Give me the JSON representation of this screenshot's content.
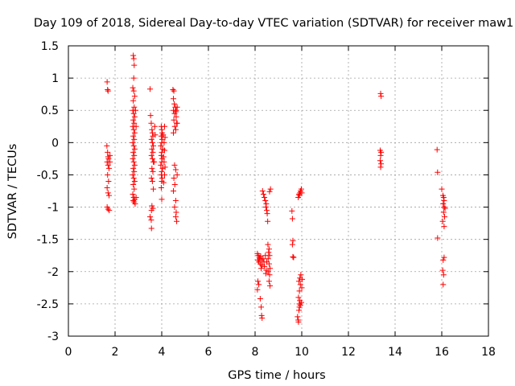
{
  "chart_data": {
    "type": "scatter",
    "title": "Day 109 of 2018, Sidereal Day-to-day VTEC variation (SDTVAR) for receiver maw1",
    "xlabel": "GPS time / hours",
    "ylabel": "SDTVAR / TECUs",
    "xlim": [
      0,
      18
    ],
    "ylim": [
      -3,
      1.5
    ],
    "xticks": [
      0,
      2,
      4,
      6,
      8,
      10,
      12,
      14,
      16,
      18
    ],
    "yticks": [
      -3,
      -2.5,
      -2,
      -1.5,
      -1,
      -0.5,
      0,
      0.5,
      1,
      1.5
    ],
    "xtick_labels": [
      "0",
      "2",
      "4",
      "6",
      "8",
      "10",
      "12",
      "14",
      "16",
      "18"
    ],
    "ytick_labels": [
      "-3",
      "-2.5",
      "-2",
      "-1.5",
      "-1",
      "-0.5",
      "0",
      "0.5",
      "1",
      "1.5"
    ],
    "grid": true,
    "marker": "+",
    "marker_color": "#ff0000",
    "series": [
      {
        "name": "SDTVAR",
        "points": [
          [
            1.66,
            0.94
          ],
          [
            1.68,
            0.82
          ],
          [
            1.7,
            0.8
          ],
          [
            1.65,
            -0.05
          ],
          [
            1.68,
            -0.15
          ],
          [
            1.7,
            -0.22
          ],
          [
            1.72,
            -0.25
          ],
          [
            1.66,
            -0.3
          ],
          [
            1.7,
            -0.35
          ],
          [
            1.74,
            -0.4
          ],
          [
            1.68,
            -0.5
          ],
          [
            1.72,
            -0.6
          ],
          [
            1.66,
            -0.7
          ],
          [
            1.7,
            -0.78
          ],
          [
            1.74,
            -0.82
          ],
          [
            1.66,
            -1.0
          ],
          [
            1.7,
            -1.03
          ],
          [
            1.75,
            -1.05
          ],
          [
            1.78,
            -0.3
          ],
          [
            1.78,
            -0.2
          ],
          [
            2.78,
            1.35
          ],
          [
            2.8,
            1.3
          ],
          [
            2.82,
            1.2
          ],
          [
            2.8,
            1.0
          ],
          [
            2.76,
            0.85
          ],
          [
            2.8,
            0.8
          ],
          [
            2.84,
            0.72
          ],
          [
            2.78,
            0.65
          ],
          [
            2.82,
            0.55
          ],
          [
            2.76,
            0.5
          ],
          [
            2.8,
            0.45
          ],
          [
            2.84,
            0.4
          ],
          [
            2.78,
            0.35
          ],
          [
            2.82,
            0.3
          ],
          [
            2.76,
            0.25
          ],
          [
            2.8,
            0.2
          ],
          [
            2.84,
            0.15
          ],
          [
            2.78,
            0.1
          ],
          [
            2.82,
            0.05
          ],
          [
            2.76,
            0.0
          ],
          [
            2.8,
            -0.05
          ],
          [
            2.84,
            -0.1
          ],
          [
            2.78,
            -0.15
          ],
          [
            2.82,
            -0.2
          ],
          [
            2.76,
            -0.25
          ],
          [
            2.8,
            -0.3
          ],
          [
            2.84,
            -0.35
          ],
          [
            2.78,
            -0.4
          ],
          [
            2.82,
            -0.45
          ],
          [
            2.76,
            -0.5
          ],
          [
            2.8,
            -0.55
          ],
          [
            2.84,
            -0.6
          ],
          [
            2.78,
            -0.65
          ],
          [
            2.82,
            -0.72
          ],
          [
            2.76,
            -0.8
          ],
          [
            2.8,
            -0.85
          ],
          [
            2.84,
            -0.88
          ],
          [
            2.78,
            -0.9
          ],
          [
            2.82,
            -0.92
          ],
          [
            2.86,
            -0.95
          ],
          [
            2.9,
            -0.85
          ],
          [
            2.9,
            0.25
          ],
          [
            2.88,
            0.5
          ],
          [
            3.5,
            0.83
          ],
          [
            3.52,
            0.42
          ],
          [
            3.55,
            0.3
          ],
          [
            3.58,
            0.2
          ],
          [
            3.6,
            0.15
          ],
          [
            3.62,
            0.1
          ],
          [
            3.56,
            0.05
          ],
          [
            3.6,
            0.0
          ],
          [
            3.64,
            -0.05
          ],
          [
            3.58,
            -0.1
          ],
          [
            3.62,
            -0.15
          ],
          [
            3.56,
            -0.2
          ],
          [
            3.6,
            -0.25
          ],
          [
            3.64,
            -0.3
          ],
          [
            3.58,
            -0.4
          ],
          [
            3.62,
            -0.45
          ],
          [
            3.56,
            -0.55
          ],
          [
            3.6,
            -0.6
          ],
          [
            3.64,
            -0.72
          ],
          [
            3.58,
            -0.98
          ],
          [
            3.62,
            -1.02
          ],
          [
            3.56,
            -1.05
          ],
          [
            3.5,
            -1.15
          ],
          [
            3.55,
            -1.2
          ],
          [
            3.56,
            -1.33
          ],
          [
            3.7,
            0.25
          ],
          [
            3.72,
            0.12
          ],
          [
            3.68,
            -0.3
          ],
          [
            3.98,
            0.25
          ],
          [
            4.0,
            0.2
          ],
          [
            4.02,
            0.15
          ],
          [
            3.98,
            0.1
          ],
          [
            4.02,
            0.05
          ],
          [
            4.0,
            0.0
          ],
          [
            3.96,
            -0.05
          ],
          [
            4.04,
            -0.1
          ],
          [
            4.0,
            -0.15
          ],
          [
            3.98,
            -0.2
          ],
          [
            4.02,
            -0.25
          ],
          [
            4.0,
            -0.3
          ],
          [
            3.96,
            -0.35
          ],
          [
            4.04,
            -0.4
          ],
          [
            4.0,
            -0.45
          ],
          [
            3.98,
            -0.5
          ],
          [
            4.02,
            -0.55
          ],
          [
            4.0,
            -0.6
          ],
          [
            4.06,
            0.12
          ],
          [
            4.1,
            0.0
          ],
          [
            4.12,
            -0.12
          ],
          [
            4.08,
            -0.22
          ],
          [
            4.1,
            -0.3
          ],
          [
            4.14,
            -0.38
          ],
          [
            4.12,
            -0.5
          ],
          [
            4.08,
            -0.62
          ],
          [
            3.98,
            -0.7
          ],
          [
            4.0,
            -0.88
          ],
          [
            4.12,
            0.25
          ],
          [
            4.14,
            0.08
          ],
          [
            4.48,
            0.82
          ],
          [
            4.52,
            0.8
          ],
          [
            4.5,
            0.68
          ],
          [
            4.54,
            0.6
          ],
          [
            4.58,
            0.55
          ],
          [
            4.5,
            0.5
          ],
          [
            4.6,
            0.48
          ],
          [
            4.55,
            0.45
          ],
          [
            4.62,
            0.4
          ],
          [
            4.52,
            0.35
          ],
          [
            4.64,
            0.3
          ],
          [
            4.56,
            0.25
          ],
          [
            4.6,
            0.2
          ],
          [
            4.5,
            0.15
          ],
          [
            4.66,
            0.3
          ],
          [
            4.62,
            0.5
          ],
          [
            4.66,
            0.55
          ],
          [
            4.55,
            -0.35
          ],
          [
            4.6,
            -0.42
          ],
          [
            4.52,
            -0.55
          ],
          [
            4.56,
            -0.65
          ],
          [
            4.5,
            -0.75
          ],
          [
            4.6,
            -0.9
          ],
          [
            4.55,
            -1.0
          ],
          [
            4.62,
            -1.08
          ],
          [
            4.6,
            -1.15
          ],
          [
            4.64,
            -1.22
          ],
          [
            4.66,
            -0.5
          ],
          [
            8.1,
            -1.72
          ],
          [
            8.14,
            -1.75
          ],
          [
            8.18,
            -1.78
          ],
          [
            8.12,
            -1.82
          ],
          [
            8.16,
            -1.85
          ],
          [
            8.2,
            -1.8
          ],
          [
            8.24,
            -1.76
          ],
          [
            8.28,
            -1.82
          ],
          [
            8.22,
            -1.88
          ],
          [
            8.3,
            -1.9
          ],
          [
            8.26,
            -1.95
          ],
          [
            8.34,
            -1.8
          ],
          [
            8.38,
            -1.85
          ],
          [
            8.4,
            -1.92
          ],
          [
            8.44,
            -1.75
          ],
          [
            8.12,
            -2.15
          ],
          [
            8.16,
            -2.2
          ],
          [
            8.1,
            -2.28
          ],
          [
            8.22,
            -2.42
          ],
          [
            8.26,
            -2.55
          ],
          [
            8.28,
            -2.68
          ],
          [
            8.3,
            -2.72
          ],
          [
            8.32,
            -0.75
          ],
          [
            8.36,
            -0.8
          ],
          [
            8.4,
            -0.85
          ],
          [
            8.44,
            -0.9
          ],
          [
            8.48,
            -0.95
          ],
          [
            8.46,
            -1.0
          ],
          [
            8.5,
            -1.05
          ],
          [
            8.52,
            -1.1
          ],
          [
            8.54,
            -1.22
          ],
          [
            8.55,
            -1.58
          ],
          [
            8.6,
            -1.65
          ],
          [
            8.58,
            -1.7
          ],
          [
            8.62,
            -1.75
          ],
          [
            8.56,
            -1.8
          ],
          [
            8.6,
            -1.88
          ],
          [
            8.64,
            -1.95
          ],
          [
            8.56,
            -2.0
          ],
          [
            8.62,
            -2.05
          ],
          [
            8.6,
            -2.15
          ],
          [
            8.64,
            -2.22
          ],
          [
            8.5,
            -1.85
          ],
          [
            8.48,
            -1.98
          ],
          [
            8.46,
            -2.03
          ],
          [
            8.66,
            -0.72
          ],
          [
            8.62,
            -0.76
          ],
          [
            9.58,
            -1.06
          ],
          [
            9.6,
            -1.18
          ],
          [
            9.62,
            -1.52
          ],
          [
            9.6,
            -1.58
          ],
          [
            9.62,
            -1.77
          ],
          [
            9.65,
            -1.78
          ],
          [
            9.82,
            -2.7
          ],
          [
            9.85,
            -2.75
          ],
          [
            9.88,
            -2.6
          ],
          [
            9.9,
            -2.5
          ],
          [
            9.92,
            -2.45
          ],
          [
            9.86,
            -2.4
          ],
          [
            9.9,
            -2.3
          ],
          [
            9.94,
            -2.2
          ],
          [
            9.88,
            -2.15
          ],
          [
            9.92,
            -2.1
          ],
          [
            9.96,
            -2.05
          ],
          [
            9.9,
            -2.55
          ],
          [
            9.94,
            -2.52
          ],
          [
            9.98,
            -2.48
          ],
          [
            10.0,
            -2.25
          ],
          [
            10.02,
            -2.12
          ],
          [
            9.85,
            -0.85
          ],
          [
            9.88,
            -0.8
          ],
          [
            9.9,
            -0.82
          ],
          [
            9.92,
            -0.78
          ],
          [
            9.95,
            -0.75
          ],
          [
            9.98,
            -0.72
          ],
          [
            10.0,
            -0.78
          ],
          [
            9.86,
            -2.78
          ],
          [
            13.38,
            0.76
          ],
          [
            13.4,
            0.72
          ],
          [
            13.36,
            -0.12
          ],
          [
            13.4,
            -0.15
          ],
          [
            13.38,
            -0.2
          ],
          [
            13.36,
            -0.28
          ],
          [
            13.4,
            -0.33
          ],
          [
            13.38,
            -0.38
          ],
          [
            15.8,
            -0.11
          ],
          [
            15.82,
            -0.46
          ],
          [
            15.82,
            -1.48
          ],
          [
            16.05,
            -0.82
          ],
          [
            16.08,
            -0.85
          ],
          [
            16.1,
            -0.9
          ],
          [
            16.06,
            -0.95
          ],
          [
            16.1,
            -1.0
          ],
          [
            16.14,
            -1.02
          ],
          [
            16.08,
            -1.08
          ],
          [
            16.12,
            -1.15
          ],
          [
            16.04,
            -1.22
          ],
          [
            16.1,
            -1.3
          ],
          [
            16.06,
            -1.82
          ],
          [
            16.1,
            -1.78
          ],
          [
            16.04,
            -1.98
          ],
          [
            16.08,
            -2.05
          ],
          [
            16.06,
            -2.2
          ],
          [
            16.0,
            -0.72
          ]
        ]
      }
    ]
  }
}
